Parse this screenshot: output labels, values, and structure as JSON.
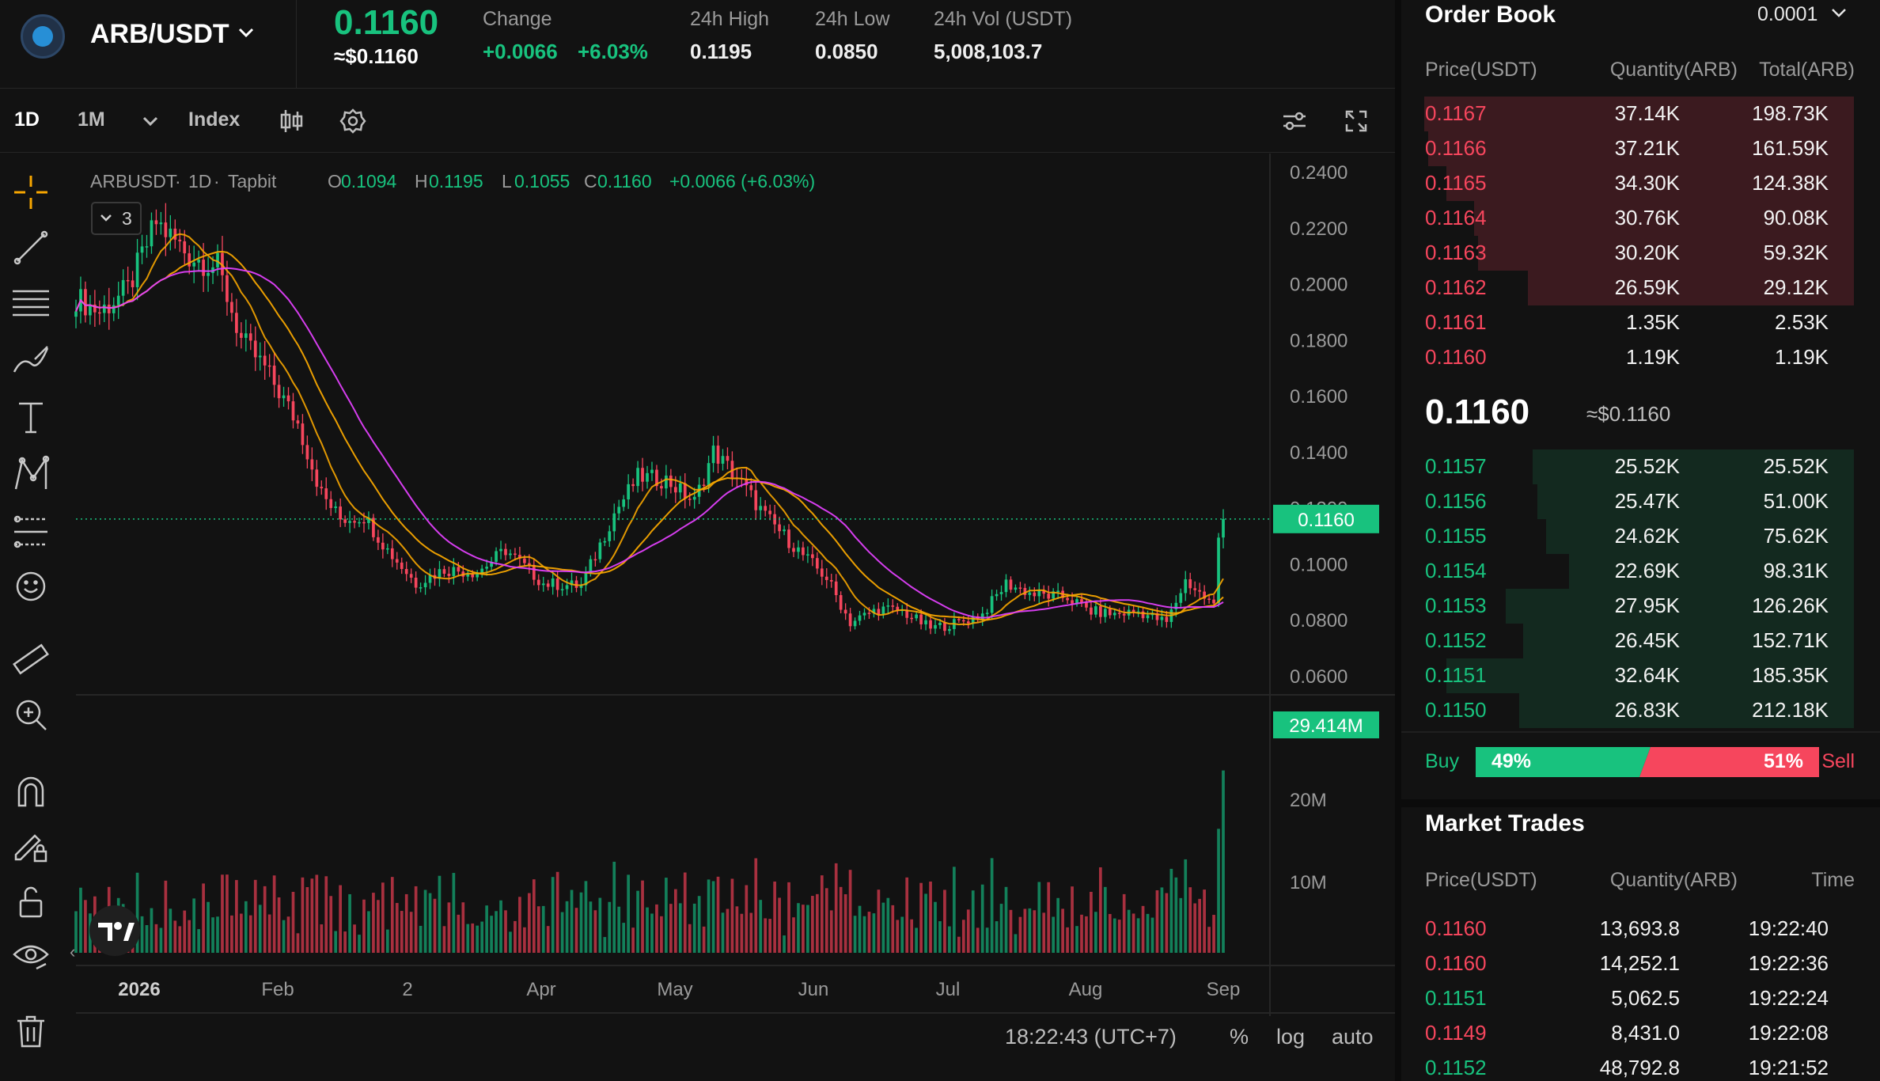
{
  "ticker": {
    "pair": "ARB/USDT",
    "last_price": "0.1160",
    "last_price_usd": "≈$0.1160",
    "change_label": "Change",
    "change_abs": "+0.0066",
    "change_pct": "+6.03%",
    "high_label": "24h High",
    "high_val": "0.1195",
    "low_label": "24h Low",
    "low_val": "0.0850",
    "vol_label": "24h Vol (USDT)",
    "vol_val": "5,008,103.7"
  },
  "toolbar": {
    "interval_1d": "1D",
    "interval_1m": "1M",
    "index_label": "Index"
  },
  "chart": {
    "symbol": "ARBUSDT",
    "dot1": "·",
    "interval": "1D",
    "dot2": "·",
    "exchange": "Tapbit",
    "ohlc": {
      "o_label": "O",
      "o": "0.1094",
      "h_label": "H",
      "h": "0.1195",
      "l_label": "L",
      "l": "0.1055",
      "c_label": "C",
      "c": "0.1160",
      "chg": "+0.0066 (+6.03%)"
    },
    "indicators_count": "3",
    "price_axis": [
      "0.2400",
      "0.2200",
      "0.2000",
      "0.1800",
      "0.1600",
      "0.1400",
      "0.1200",
      "0.1000",
      "0.0800",
      "0.0600"
    ],
    "current_price_tag": "0.1160",
    "volume_axis": [
      "20M",
      "10M"
    ],
    "volume_tag": "29.414M",
    "time_axis": [
      "2026",
      "Feb",
      "2",
      "Apr",
      "May",
      "Jun",
      "Jul",
      "Aug",
      "Sep"
    ],
    "clock": "18:22:43 (UTC+7)",
    "pct_label": "%",
    "log_label": "log",
    "auto_label": "auto",
    "colors": {
      "up": "#18c27e",
      "down": "#f6465d",
      "ma1": "#f7a600",
      "ma2": "#e040fb"
    }
  },
  "chart_data": {
    "type": "candlestick",
    "symbol": "ARBUSDT",
    "interval": "1D",
    "x_range": [
      "2026-01-01",
      "2026-09-01"
    ],
    "ylim": [
      0.06,
      0.24
    ],
    "anchors_close": [
      [
        "2026-01-01",
        0.195
      ],
      [
        "2026-01-06",
        0.19
      ],
      [
        "2026-01-12",
        0.198
      ],
      [
        "2026-01-18",
        0.222
      ],
      [
        "2026-01-25",
        0.21
      ],
      [
        "2026-01-31",
        0.206
      ],
      [
        "2026-02-05",
        0.18
      ],
      [
        "2026-02-10",
        0.17
      ],
      [
        "2026-02-17",
        0.15
      ],
      [
        "2026-02-22",
        0.125
      ],
      [
        "2026-02-26",
        0.116
      ],
      [
        "2026-03-03",
        0.117
      ],
      [
        "2026-03-08",
        0.105
      ],
      [
        "2026-03-14",
        0.093
      ],
      [
        "2026-03-20",
        0.098
      ],
      [
        "2026-03-27",
        0.097
      ],
      [
        "2026-04-02",
        0.105
      ],
      [
        "2026-04-10",
        0.093
      ],
      [
        "2026-04-18",
        0.092
      ],
      [
        "2026-04-25",
        0.118
      ],
      [
        "2026-04-30",
        0.131
      ],
      [
        "2026-05-06",
        0.13
      ],
      [
        "2026-05-12",
        0.122
      ],
      [
        "2026-05-16",
        0.14
      ],
      [
        "2026-05-21",
        0.131
      ],
      [
        "2026-05-27",
        0.117
      ],
      [
        "2026-06-04",
        0.103
      ],
      [
        "2026-06-09",
        0.095
      ],
      [
        "2026-06-14",
        0.079
      ],
      [
        "2026-06-20",
        0.084
      ],
      [
        "2026-06-25",
        0.083
      ],
      [
        "2026-07-01",
        0.077
      ],
      [
        "2026-07-07",
        0.079
      ],
      [
        "2026-07-12",
        0.082
      ],
      [
        "2026-07-17",
        0.093
      ],
      [
        "2026-07-23",
        0.089
      ],
      [
        "2026-07-30",
        0.088
      ],
      [
        "2026-08-04",
        0.083
      ],
      [
        "2026-08-09",
        0.082
      ],
      [
        "2026-08-14",
        0.083
      ],
      [
        "2026-08-20",
        0.079
      ],
      [
        "2026-08-24",
        0.094
      ],
      [
        "2026-08-28",
        0.088
      ],
      [
        "2026-08-30",
        0.085
      ],
      [
        "2026-08-31",
        0.1094
      ],
      [
        "2026-09-01",
        0.116
      ]
    ],
    "last_candle": {
      "open": 0.1094,
      "high": 0.1195,
      "low": 0.1055,
      "close": 0.116
    },
    "moving_averages": 3,
    "volume": {
      "ylim": [
        0,
        30
      ],
      "unit": "M",
      "last": 29.414
    }
  },
  "orderbook": {
    "title": "Order Book",
    "precision": "0.0001",
    "h_price": "Price(USDT)",
    "h_qty": "Quantity(ARB)",
    "h_total": "Total(ARB)",
    "asks": [
      {
        "price": "0.1167",
        "qty": "37.14K",
        "total": "198.73K",
        "depth": 0.95
      },
      {
        "price": "0.1166",
        "qty": "37.21K",
        "total": "161.59K",
        "depth": 0.94
      },
      {
        "price": "0.1165",
        "qty": "34.30K",
        "total": "124.38K",
        "depth": 0.9
      },
      {
        "price": "0.1164",
        "qty": "30.76K",
        "total": "90.08K",
        "depth": 0.84
      },
      {
        "price": "0.1163",
        "qty": "30.20K",
        "total": "59.32K",
        "depth": 0.83
      },
      {
        "price": "0.1162",
        "qty": "26.59K",
        "total": "29.12K",
        "depth": 0.72
      },
      {
        "price": "0.1161",
        "qty": "1.35K",
        "total": "2.53K",
        "depth": 0.0
      },
      {
        "price": "0.1160",
        "qty": "1.19K",
        "total": "1.19K",
        "depth": 0.0
      }
    ],
    "mid_price": "0.1160",
    "mid_usd": "≈$0.1160",
    "bids": [
      {
        "price": "0.1157",
        "qty": "25.52K",
        "total": "25.52K",
        "depth": 0.71
      },
      {
        "price": "0.1156",
        "qty": "25.47K",
        "total": "51.00K",
        "depth": 0.7
      },
      {
        "price": "0.1155",
        "qty": "24.62K",
        "total": "75.62K",
        "depth": 0.68
      },
      {
        "price": "0.1154",
        "qty": "22.69K",
        "total": "98.31K",
        "depth": 0.63
      },
      {
        "price": "0.1153",
        "qty": "27.95K",
        "total": "126.26K",
        "depth": 0.77
      },
      {
        "price": "0.1152",
        "qty": "26.45K",
        "total": "152.71K",
        "depth": 0.73
      },
      {
        "price": "0.1151",
        "qty": "32.64K",
        "total": "185.35K",
        "depth": 0.9
      },
      {
        "price": "0.1150",
        "qty": "26.83K",
        "total": "212.18K",
        "depth": 0.74
      }
    ],
    "buy_label": "Buy",
    "buy_pct": "49%",
    "sell_pct": "51%",
    "sell_label": "Sell",
    "buy_ratio": 0.49
  },
  "trades": {
    "title": "Market Trades",
    "h_price": "Price(USDT)",
    "h_qty": "Quantity(ARB)",
    "h_time": "Time",
    "rows": [
      {
        "price": "0.1160",
        "qty": "13,693.8",
        "time": "19:22:40",
        "side": "sell"
      },
      {
        "price": "0.1160",
        "qty": "14,252.1",
        "time": "19:22:36",
        "side": "sell"
      },
      {
        "price": "0.1151",
        "qty": "5,062.5",
        "time": "19:22:24",
        "side": "buy"
      },
      {
        "price": "0.1149",
        "qty": "8,431.0",
        "time": "19:22:08",
        "side": "sell"
      },
      {
        "price": "0.1152",
        "qty": "48,792.8",
        "time": "19:21:52",
        "side": "buy"
      }
    ]
  }
}
